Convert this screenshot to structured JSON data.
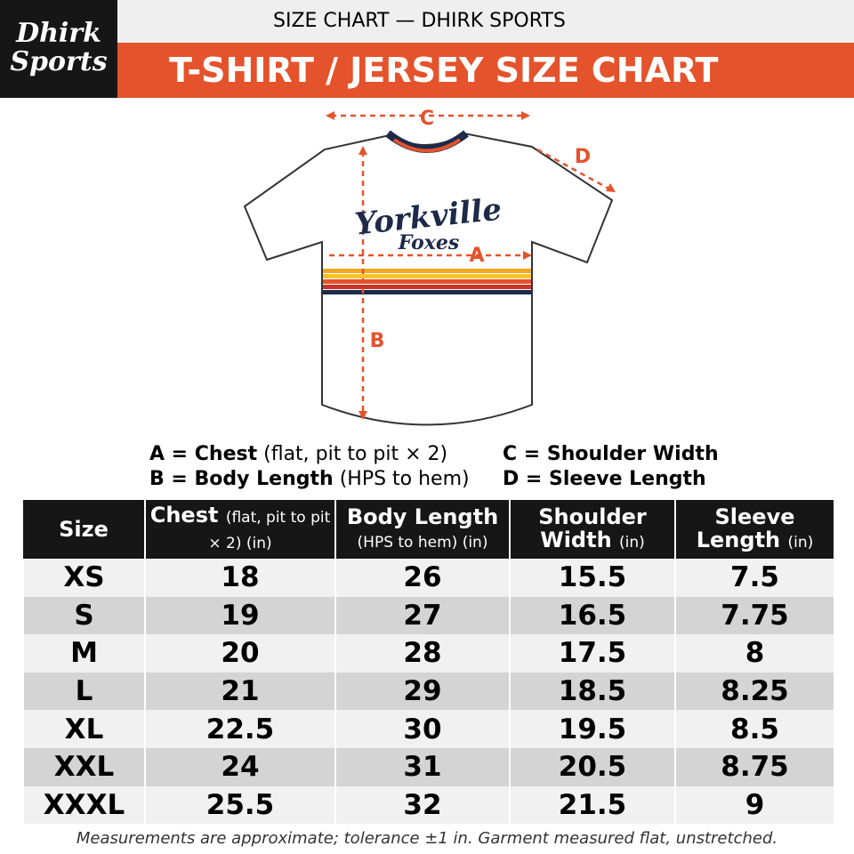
{
  "header": {
    "brand_line1": "Dhirk",
    "brand_line2": "Sports",
    "subtitle": "SIZE CHART — DHIRK SPORTS",
    "title": "T-SHIRT / JERSEY SIZE CHART"
  },
  "diagram": {
    "shirt_text_1": "Yorkville",
    "shirt_text_2": "Foxes",
    "label_c": "C",
    "label_d": "D",
    "label_a": "A",
    "label_b": "B"
  },
  "legend": [
    {
      "term": "A = Chest",
      "note": "(flat, pit to pit × 2)"
    },
    {
      "term": "B = Body Length",
      "note": "(HPS to hem)"
    },
    {
      "term": "C = Shoulder Width"
    },
    {
      "term": "D = Sleeve Length"
    }
  ],
  "table": {
    "columns": [
      {
        "name": "Size"
      },
      {
        "name": "Chest",
        "unit": "(flat, pit to pit × 2) (in)"
      },
      {
        "name": "Body Length",
        "unit": "(HPS to hem) (in)"
      },
      {
        "name": "Shoulder Width",
        "unit": "(in)"
      },
      {
        "name": "Sleeve Length",
        "unit": "(in)"
      }
    ],
    "rows": [
      [
        "XS",
        18,
        26,
        15.5,
        7.5
      ],
      [
        "S",
        19,
        27,
        16.5,
        7.75
      ],
      [
        "M",
        20,
        28,
        17.5,
        8
      ],
      [
        "L",
        21,
        29,
        18.5,
        8.25
      ],
      [
        "XL",
        22.5,
        30,
        19.5,
        8.5
      ],
      [
        "XXL",
        24,
        31,
        20.5,
        8.75
      ],
      [
        "XXXL",
        25.5,
        32,
        21.5,
        9
      ]
    ]
  },
  "footnote": "Measurements are approximate; tolerance ±1 in. Garment measured flat, unstretched."
}
